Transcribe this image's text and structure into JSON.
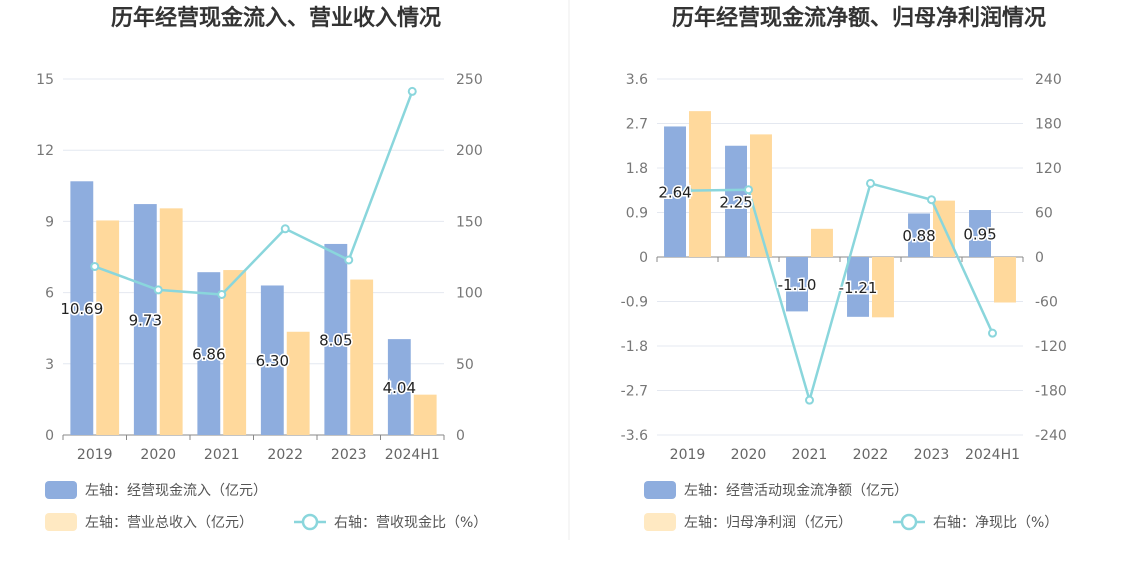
{
  "colors": {
    "bar1": "#8eadde",
    "bar2": "#ffd99c",
    "line": "#8ad6dc",
    "grid": "#e4e8f0",
    "axis": "#888888",
    "legend_bar2": "#ffe9c2",
    "divider": "#eeeeee"
  },
  "chart_data": [
    {
      "type": "bar",
      "title": "历年经营现金流入、营业收入情况",
      "categories": [
        "2019",
        "2020",
        "2021",
        "2022",
        "2023",
        "2024H1"
      ],
      "left_axis": {
        "ticks": [
          "0",
          "3",
          "6",
          "9",
          "12",
          "15"
        ],
        "min": 0,
        "max": 15
      },
      "right_axis": {
        "ticks": [
          "0",
          "50",
          "100",
          "150",
          "200",
          "250"
        ],
        "min": 0,
        "max": 250
      },
      "series": [
        {
          "name": "左轴：经营现金流入（亿元）",
          "axis": "left",
          "kind": "bar",
          "values": [
            10.69,
            9.73,
            6.86,
            6.3,
            8.05,
            4.04
          ],
          "labels": [
            "10.69",
            "9.73",
            "6.86",
            "6.30",
            "8.05",
            "4.04"
          ]
        },
        {
          "name": "左轴：营业总收入（亿元）",
          "axis": "left",
          "kind": "bar",
          "values": [
            9.04,
            9.55,
            6.95,
            4.35,
            6.55,
            1.7
          ]
        },
        {
          "name": "右轴：营收现金比（%）",
          "axis": "right",
          "kind": "line",
          "values": [
            118.3,
            101.9,
            98.7,
            144.8,
            122.9,
            241.3
          ]
        }
      ]
    },
    {
      "type": "bar",
      "title": "历年经营现金流净额、归母净利润情况",
      "categories": [
        "2019",
        "2020",
        "2021",
        "2022",
        "2023",
        "2024H1"
      ],
      "left_axis": {
        "ticks": [
          "-3.6",
          "-2.7",
          "-1.8",
          "-0.9",
          "0",
          "0.9",
          "1.8",
          "2.7",
          "3.6"
        ],
        "min": -3.6,
        "max": 3.6
      },
      "right_axis": {
        "ticks": [
          "-240",
          "-180",
          "-120",
          "-60",
          "0",
          "60",
          "120",
          "180",
          "240"
        ],
        "min": -240,
        "max": 240
      },
      "series": [
        {
          "name": "左轴：经营活动现金流净额（亿元）",
          "axis": "left",
          "kind": "bar",
          "values": [
            2.64,
            2.25,
            -1.1,
            -1.21,
            0.88,
            0.95
          ],
          "labels": [
            "2.64",
            "2.25",
            "-1.10",
            "-1.21",
            "0.88",
            "0.95"
          ]
        },
        {
          "name": "左轴：归母净利润（亿元）",
          "axis": "left",
          "kind": "bar",
          "values": [
            2.95,
            2.48,
            0.57,
            -1.22,
            1.14,
            -0.92
          ]
        },
        {
          "name": "右轴：净现比（%）",
          "axis": "right",
          "kind": "line",
          "values": [
            89.5,
            90.7,
            -193.0,
            99.2,
            77.2,
            -102.7
          ]
        }
      ]
    }
  ]
}
